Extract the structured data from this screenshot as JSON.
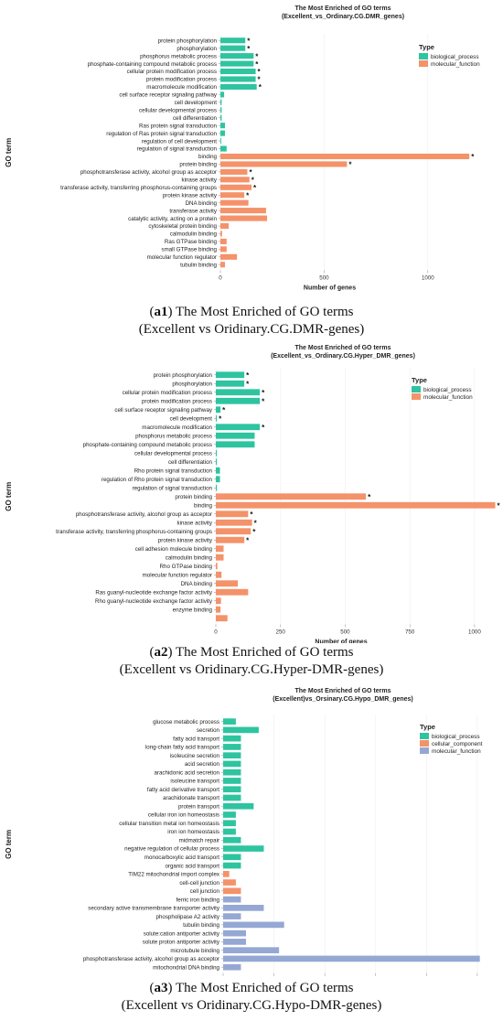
{
  "colors": {
    "biological_process": "#2ec4a0",
    "molecular_function": "#f4926a",
    "cellular_component": "#f4926a",
    "molecular_function_blue": "#95a8d4",
    "gridline": "#eeeeee",
    "axis": "#888888"
  },
  "captions": [
    {
      "label": "a1",
      "line1": "The Most Enriched of GO terms",
      "line2": "(Excellent vs Oridinary.CG.DMR-genes)"
    },
    {
      "label": "a2",
      "line1": "The Most Enriched of GO terms",
      "line2": "(Excellent vs Oridinary.CG.Hyper-DMR-genes)"
    },
    {
      "label": "a3",
      "line1": "The Most Enriched of GO terms",
      "line2": "(Excellent vs Oridinary.CG.Hypo-DMR-genes)"
    }
  ],
  "chart_data": [
    {
      "type": "bar",
      "orientation": "horizontal",
      "title": "The Most Enriched of GO terms",
      "subtitle": "(Excellent_vs_Ordinary.CG.DMR_genes)",
      "xlabel": "Number of genes",
      "ylabel": "GO term",
      "xlim": [
        0,
        1230
      ],
      "xticks": [
        0,
        500,
        1000
      ],
      "grid": true,
      "legend_title": "Type",
      "legend": [
        {
          "name": "biological_process",
          "color": "#2ec4a0"
        },
        {
          "name": "molecular_function",
          "color": "#f4926a"
        }
      ],
      "legend_position": "top-right",
      "categories": [
        {
          "label": "protein phosphorylation",
          "value": 120,
          "type": "biological_process",
          "sig": "*"
        },
        {
          "label": "phosphorylation",
          "value": 120,
          "type": "biological_process",
          "sig": "*"
        },
        {
          "label": "phosphorus metabolic process",
          "value": 160,
          "type": "biological_process",
          "sig": "*"
        },
        {
          "label": "phosphate-containing compound metabolic process",
          "value": 160,
          "type": "biological_process",
          "sig": "*"
        },
        {
          "label": "cellular protein modification process",
          "value": 170,
          "type": "biological_process",
          "sig": "*"
        },
        {
          "label": "protein modification process",
          "value": 170,
          "type": "biological_process",
          "sig": "*"
        },
        {
          "label": "macromolecule modification",
          "value": 175,
          "type": "biological_process",
          "sig": "*"
        },
        {
          "label": "cell surface receptor signaling pathway",
          "value": 18,
          "type": "biological_process",
          "sig": ""
        },
        {
          "label": "cell development",
          "value": 6,
          "type": "biological_process",
          "sig": ""
        },
        {
          "label": "cellular developmental process",
          "value": 6,
          "type": "biological_process",
          "sig": ""
        },
        {
          "label": "cell differentiation",
          "value": 6,
          "type": "biological_process",
          "sig": ""
        },
        {
          "label": "Ras protein signal transduction",
          "value": 22,
          "type": "biological_process",
          "sig": ""
        },
        {
          "label": "regulation of Ras protein signal transduction",
          "value": 22,
          "type": "biological_process",
          "sig": ""
        },
        {
          "label": "regulation of cell development",
          "value": 4,
          "type": "biological_process",
          "sig": ""
        },
        {
          "label": "regulation of signal transduction",
          "value": 30,
          "type": "biological_process",
          "sig": ""
        },
        {
          "label": "binding",
          "value": 1200,
          "type": "molecular_function",
          "sig": "*"
        },
        {
          "label": "protein binding",
          "value": 610,
          "type": "molecular_function",
          "sig": "*"
        },
        {
          "label": "phosphotransferase activity, alcohol group as acceptor",
          "value": 130,
          "type": "molecular_function",
          "sig": "*"
        },
        {
          "label": "kinase activity",
          "value": 140,
          "type": "molecular_function",
          "sig": "*"
        },
        {
          "label": "transferase activity, transferring phosphorus-containing groups",
          "value": 150,
          "type": "molecular_function",
          "sig": "*"
        },
        {
          "label": "protein kinase activity",
          "value": 115,
          "type": "molecular_function",
          "sig": "*"
        },
        {
          "label": "DNA binding",
          "value": 135,
          "type": "molecular_function",
          "sig": ""
        },
        {
          "label": "transferase activity",
          "value": 220,
          "type": "molecular_function",
          "sig": ""
        },
        {
          "label": "catalytic activity, acting on a protein",
          "value": 225,
          "type": "molecular_function",
          "sig": ""
        },
        {
          "label": "cytoskeletal protein binding",
          "value": 40,
          "type": "molecular_function",
          "sig": ""
        },
        {
          "label": "calmodulin binding",
          "value": 8,
          "type": "molecular_function",
          "sig": ""
        },
        {
          "label": "Ras GTPase binding",
          "value": 30,
          "type": "molecular_function",
          "sig": ""
        },
        {
          "label": "small GTPase binding",
          "value": 30,
          "type": "molecular_function",
          "sig": ""
        },
        {
          "label": "molecular function regulator",
          "value": 80,
          "type": "molecular_function",
          "sig": ""
        },
        {
          "label": "tubulin binding",
          "value": 22,
          "type": "molecular_function",
          "sig": ""
        }
      ]
    },
    {
      "type": "bar",
      "orientation": "horizontal",
      "title": "The Most Enriched of GO terms",
      "subtitle": "(Excellent_vs_Ordinary.CG.Hyper_DMR_genes)",
      "xlabel": "Number of genes",
      "ylabel": "GO term",
      "xlim": [
        0,
        1110
      ],
      "xticks": [
        0,
        250,
        500,
        750,
        1000
      ],
      "grid": true,
      "legend_title": "Type",
      "legend": [
        {
          "name": "biological_process",
          "color": "#2ec4a0"
        },
        {
          "name": "molecular_function",
          "color": "#f4926a"
        }
      ],
      "legend_position": "top-right",
      "categories": [
        {
          "label": "protein phosphorylation",
          "value": 110,
          "type": "biological_process",
          "sig": "*"
        },
        {
          "label": "phosphorylation",
          "value": 110,
          "type": "biological_process",
          "sig": "*"
        },
        {
          "label": "cellular protein modification process",
          "value": 170,
          "type": "biological_process",
          "sig": "*"
        },
        {
          "label": "protein modification process",
          "value": 170,
          "type": "biological_process",
          "sig": "*"
        },
        {
          "label": "cell surface receptor signaling pathway",
          "value": 18,
          "type": "biological_process",
          "sig": "*"
        },
        {
          "label": "cell development",
          "value": 4,
          "type": "biological_process",
          "sig": "*"
        },
        {
          "label": "macromolecule modification",
          "value": 170,
          "type": "biological_process",
          "sig": "*"
        },
        {
          "label": "phosphorus metabolic process",
          "value": 150,
          "type": "biological_process",
          "sig": ""
        },
        {
          "label": "phosphate-containing compound metabolic process",
          "value": 150,
          "type": "biological_process",
          "sig": ""
        },
        {
          "label": "cellular developmental process",
          "value": 4,
          "type": "biological_process",
          "sig": ""
        },
        {
          "label": "cell differentiation",
          "value": 4,
          "type": "biological_process",
          "sig": ""
        },
        {
          "label": "Rho protein signal transduction",
          "value": 16,
          "type": "biological_process",
          "sig": ""
        },
        {
          "label": "regulation of Rho protein signal transduction",
          "value": 16,
          "type": "biological_process",
          "sig": ""
        },
        {
          "label": "regulation of signal transduction",
          "value": 4,
          "type": "biological_process",
          "sig": ""
        },
        {
          "label": "protein binding",
          "value": 580,
          "type": "molecular_function",
          "sig": "*"
        },
        {
          "label": "binding",
          "value": 1080,
          "type": "molecular_function",
          "sig": "*"
        },
        {
          "label": "phosphotransferase activity, alcohol group as acceptor",
          "value": 125,
          "type": "molecular_function",
          "sig": "*"
        },
        {
          "label": "kinase activity",
          "value": 140,
          "type": "molecular_function",
          "sig": "*"
        },
        {
          "label": "transferase activity, transferring phosphorus-containing groups",
          "value": 135,
          "type": "molecular_function",
          "sig": "*"
        },
        {
          "label": "protein kinase activity",
          "value": 110,
          "type": "molecular_function",
          "sig": "*"
        },
        {
          "label": "cell adhesion molecule binding",
          "value": 30,
          "type": "molecular_function",
          "sig": ""
        },
        {
          "label": "calmodulin binding",
          "value": 30,
          "type": "molecular_function",
          "sig": ""
        },
        {
          "label": "Rho GTPase binding",
          "value": 6,
          "type": "molecular_function",
          "sig": ""
        },
        {
          "label": "molecular function regulator",
          "value": 22,
          "type": "molecular_function",
          "sig": ""
        },
        {
          "label": "DNA binding",
          "value": 85,
          "type": "molecular_function",
          "sig": ""
        },
        {
          "label": "Ras guanyl-nucleotide exchange factor activity",
          "value": 125,
          "type": "molecular_function",
          "sig": ""
        },
        {
          "label": "Rho guanyl-nucleotide exchange factor activity",
          "value": 20,
          "type": "molecular_function",
          "sig": ""
        },
        {
          "label": "enzyme binding",
          "value": 18,
          "type": "molecular_function",
          "sig": ""
        },
        {
          "label": "",
          "value": 45,
          "type": "molecular_function",
          "sig": ""
        }
      ]
    },
    {
      "type": "bar",
      "orientation": "horizontal",
      "title": "The Most Enriched of GO terms",
      "subtitle": "(Excellent)vs_Orsinary.CG.Hypo_DMR_genes)",
      "xlabel": "Number of genes",
      "ylabel": "GO term",
      "xlim": [
        0,
        52
      ],
      "xticks": [
        0,
        10,
        20,
        30,
        40,
        50
      ],
      "grid": true,
      "legend_title": "Type",
      "legend": [
        {
          "name": "biological_process",
          "color": "#2ec4a0"
        },
        {
          "name": "cellular_component",
          "color": "#f4926a"
        },
        {
          "name": "molecular_function",
          "color": "#95a8d4"
        }
      ],
      "legend_position": "top-right",
      "categories": [
        {
          "label": "glucose metabolic process",
          "value": 2.5,
          "type": "biological_process",
          "sig": ""
        },
        {
          "label": "secretion",
          "value": 7,
          "type": "biological_process",
          "sig": ""
        },
        {
          "label": "fatty acid  transport",
          "value": 3.5,
          "type": "biological_process",
          "sig": ""
        },
        {
          "label": "long-chain fatty acid transport",
          "value": 3.5,
          "type": "biological_process",
          "sig": ""
        },
        {
          "label": "isoleucine secretion",
          "value": 3.5,
          "type": "biological_process",
          "sig": ""
        },
        {
          "label": "acid secretion",
          "value": 3.5,
          "type": "biological_process",
          "sig": ""
        },
        {
          "label": "arachidonic acid secretion",
          "value": 3.5,
          "type": "biological_process",
          "sig": ""
        },
        {
          "label": "isoleucine transport",
          "value": 3.5,
          "type": "biological_process",
          "sig": ""
        },
        {
          "label": "fatty acid derivative transport",
          "value": 3.5,
          "type": "biological_process",
          "sig": ""
        },
        {
          "label": "arachidonate transport",
          "value": 3.5,
          "type": "biological_process",
          "sig": ""
        },
        {
          "label": "protein transport",
          "value": 6,
          "type": "biological_process",
          "sig": ""
        },
        {
          "label": "cellular iron ion homeostasis",
          "value": 2.5,
          "type": "biological_process",
          "sig": ""
        },
        {
          "label": "cellular transition metal ion homeostasis",
          "value": 2.5,
          "type": "biological_process",
          "sig": ""
        },
        {
          "label": "iron ion homeostasis",
          "value": 2.5,
          "type": "biological_process",
          "sig": ""
        },
        {
          "label": "midmatch repair",
          "value": 3.5,
          "type": "biological_process",
          "sig": ""
        },
        {
          "label": "negative regulation of cellular process",
          "value": 8,
          "type": "biological_process",
          "sig": ""
        },
        {
          "label": "monocarboxylic acid transport",
          "value": 3.5,
          "type": "biological_process",
          "sig": ""
        },
        {
          "label": "organic acid transport",
          "value": 3.5,
          "type": "biological_process",
          "sig": ""
        },
        {
          "label": "TIM22 mitochondrial import complex",
          "value": 1.2,
          "type": "cellular_component",
          "sig": ""
        },
        {
          "label": "cell-cell junction",
          "value": 2.5,
          "type": "cellular_component",
          "sig": ""
        },
        {
          "label": "cell junction",
          "value": 3.5,
          "type": "cellular_component",
          "sig": ""
        },
        {
          "label": "ferric iron binding",
          "value": 3.5,
          "type": "molecular_function",
          "sig": ""
        },
        {
          "label": "secondary active transmembrane transporter activity",
          "value": 8,
          "type": "molecular_function",
          "sig": ""
        },
        {
          "label": "phospholipase A2 activity",
          "value": 3.5,
          "type": "molecular_function",
          "sig": ""
        },
        {
          "label": "tubulin binding",
          "value": 12,
          "type": "molecular_function",
          "sig": ""
        },
        {
          "label": "solute:cation antiporter activity",
          "value": 4.5,
          "type": "molecular_function",
          "sig": ""
        },
        {
          "label": "solute proton antiporter activity",
          "value": 4.5,
          "type": "molecular_function",
          "sig": ""
        },
        {
          "label": "microtubule binding",
          "value": 11,
          "type": "molecular_function",
          "sig": ""
        },
        {
          "label": "phosphotransferase activity, alcohol group as acceptor",
          "value": 50.5,
          "type": "molecular_function",
          "sig": ""
        },
        {
          "label": "mitochondrial DNA binding",
          "value": 3.5,
          "type": "molecular_function",
          "sig": ""
        }
      ]
    }
  ]
}
